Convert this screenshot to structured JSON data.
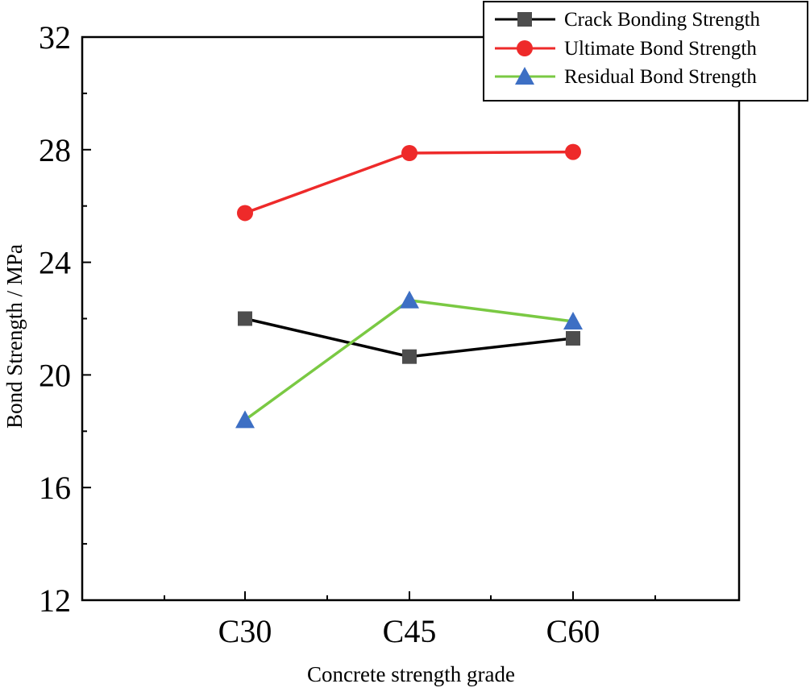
{
  "chart_data": {
    "type": "line",
    "title": "",
    "xlabel": "Concrete strength grade",
    "ylabel": "Bond Strength / MPa",
    "categories": [
      "C30",
      "C45",
      "C60"
    ],
    "ylim": [
      12,
      32
    ],
    "yticks": [
      "12",
      "16",
      "20",
      "24",
      "28",
      "32"
    ],
    "grid": false,
    "legend_position": "top-right",
    "series": [
      {
        "name": "Crack Bonding Strength",
        "values": [
          22.0,
          20.65,
          21.3
        ],
        "color": "#000000",
        "marker_color": "#4d4d4d",
        "marker": "square"
      },
      {
        "name": "Ultimate Bond Strength",
        "values": [
          25.75,
          27.88,
          27.92
        ],
        "color": "#ee2a2a",
        "marker_color": "#ee2a2a",
        "marker": "circle"
      },
      {
        "name": "Residual Bond Strength",
        "values": [
          18.4,
          22.65,
          21.9
        ],
        "color": "#7ac943",
        "marker_color": "#3d6fc4",
        "marker": "triangle"
      }
    ]
  }
}
